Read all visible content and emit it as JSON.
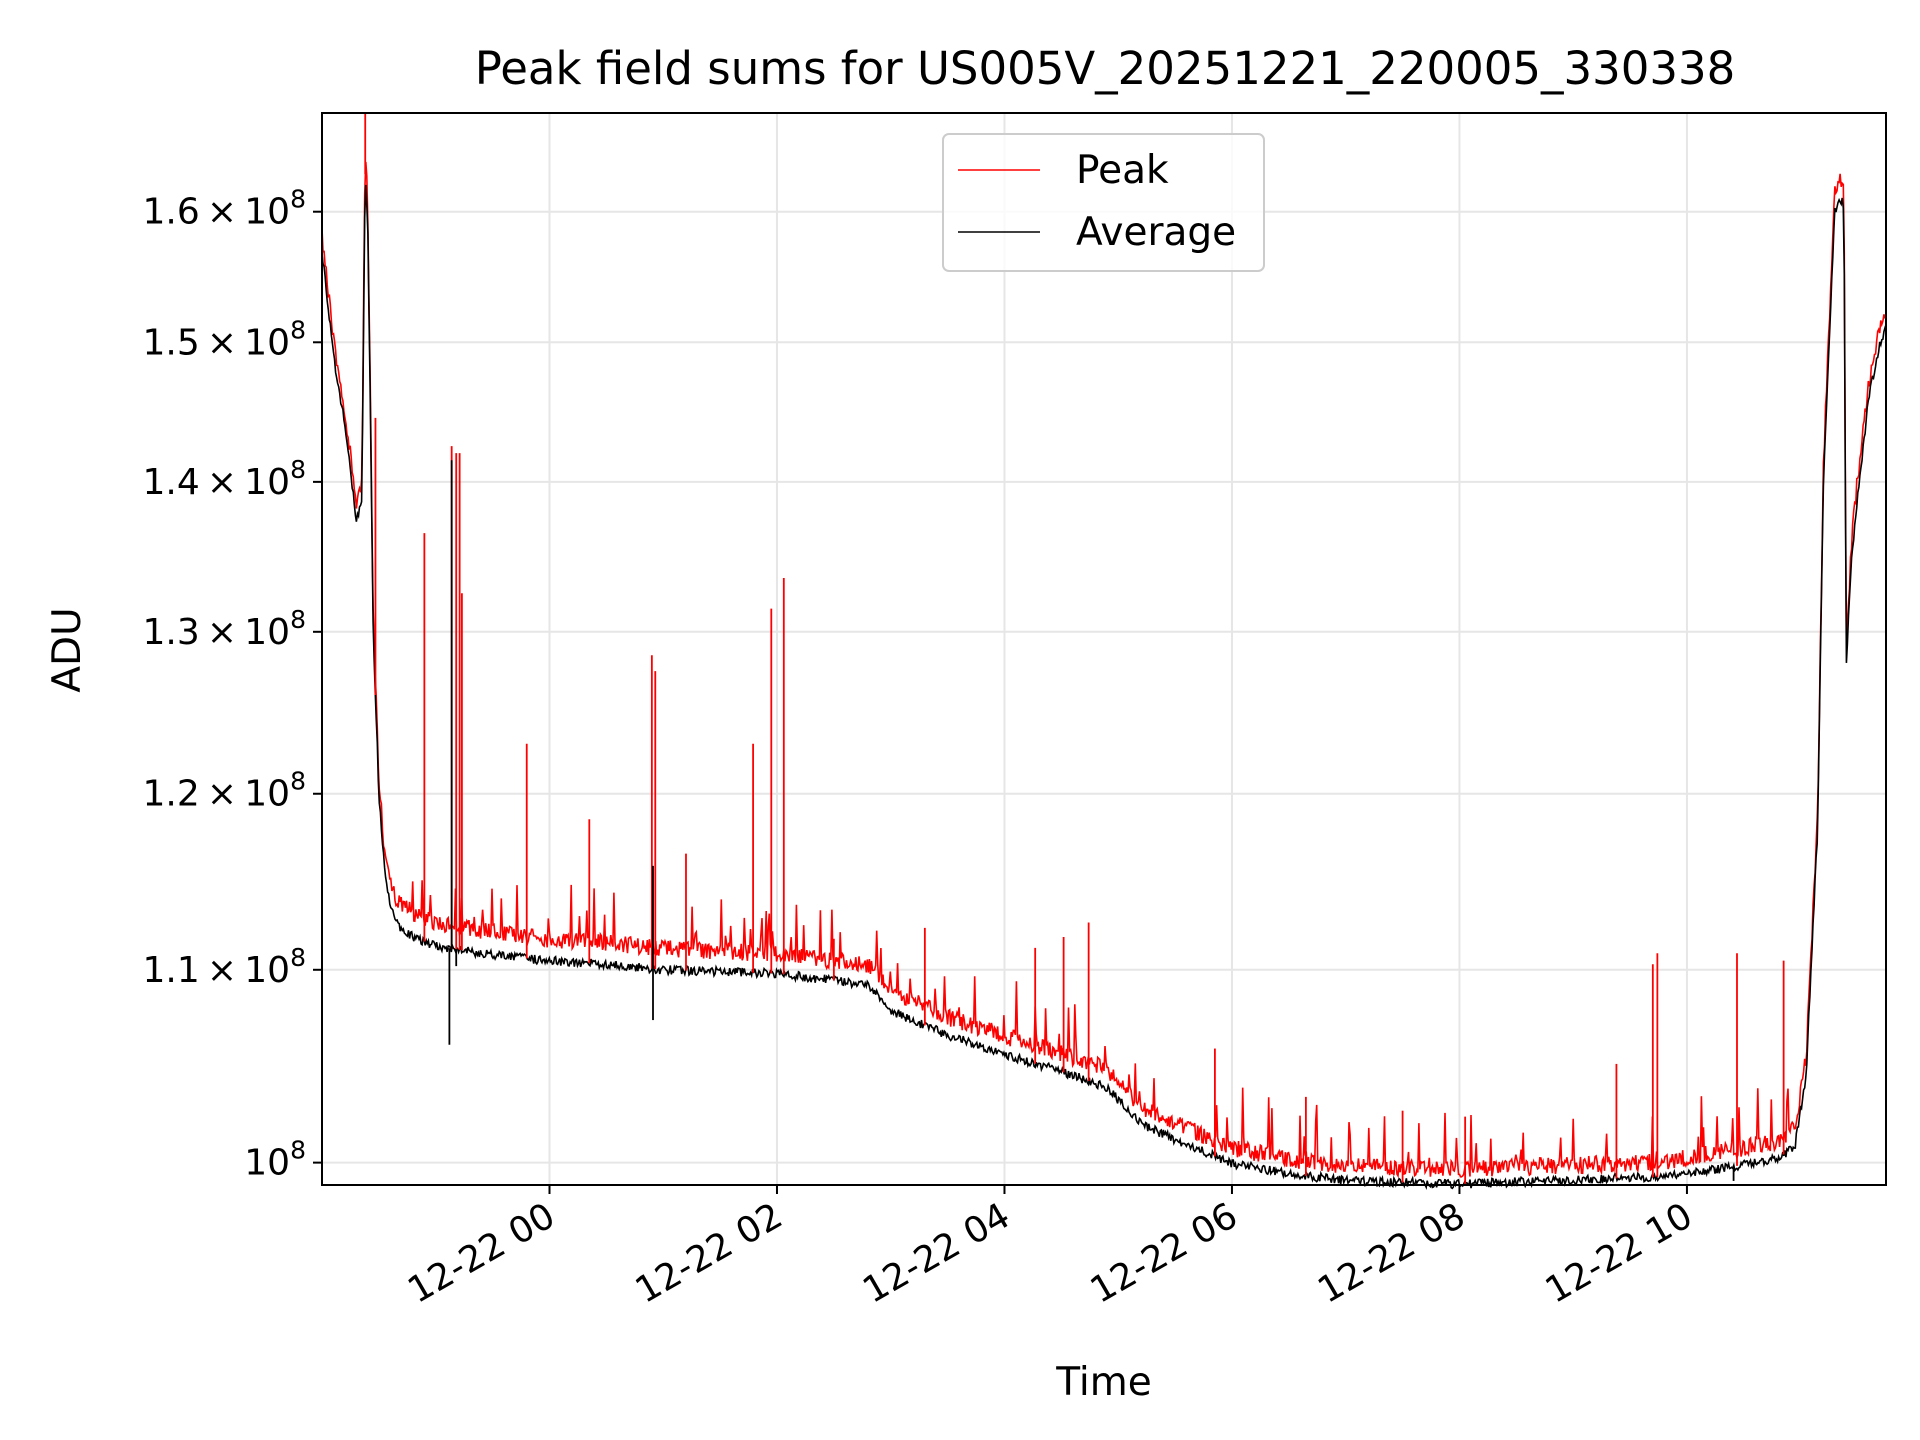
{
  "chart_data": {
    "type": "line",
    "title": "Peak field sums for US005V_20251221_220005_330338",
    "xlabel": "Time",
    "ylabel": "ADU",
    "x_unit": "hours since 2025-12-22 00:00",
    "xlim": [
      -2.0,
      11.75
    ],
    "ylim": [
      98900000,
      168000000
    ],
    "y_scale": "log",
    "grid": true,
    "legend_position": "upper-center",
    "x_ticks": [
      {
        "value": 0,
        "label": "12-22 00"
      },
      {
        "value": 2,
        "label": "12-22 02"
      },
      {
        "value": 4,
        "label": "12-22 04"
      },
      {
        "value": 6,
        "label": "12-22 06"
      },
      {
        "value": 8,
        "label": "12-22 08"
      },
      {
        "value": 10,
        "label": "12-22 10"
      }
    ],
    "y_ticks": [
      {
        "value": 100000000,
        "mant": "",
        "exp": "8"
      },
      {
        "value": 110000000,
        "mant": "1.1",
        "exp": "8"
      },
      {
        "value": 120000000,
        "mant": "1.2",
        "exp": "8"
      },
      {
        "value": 130000000,
        "mant": "1.3",
        "exp": "8"
      },
      {
        "value": 140000000,
        "mant": "1.4",
        "exp": "8"
      },
      {
        "value": 150000000,
        "mant": "1.5",
        "exp": "8"
      },
      {
        "value": 160000000,
        "mant": "1.6",
        "exp": "8"
      }
    ],
    "series": [
      {
        "name": "Peak",
        "color": "#ff0000"
      },
      {
        "name": "Average",
        "color": "#000000"
      }
    ],
    "baseline": {
      "x": [
        -2.0,
        -1.9,
        -1.8,
        -1.7,
        -1.65,
        -1.62,
        -1.6,
        -1.55,
        -1.5,
        -1.45,
        -1.4,
        -1.35,
        -1.3,
        -1.2,
        -1.0,
        -0.5,
        0.0,
        0.5,
        1.0,
        2.0,
        2.8,
        3.0,
        3.5,
        4.0,
        4.5,
        4.9,
        5.2,
        5.6,
        6.0,
        6.5,
        7.0,
        8.0,
        9.0,
        9.8,
        10.3,
        10.8,
        10.95,
        11.05,
        11.15,
        11.2,
        11.3,
        11.35,
        11.38,
        11.4,
        11.45,
        11.5,
        11.6,
        11.7,
        11.75
      ],
      "average": [
        157000000,
        149000000,
        144000000,
        137500000,
        138500000,
        163000000,
        160000000,
        130000000,
        120000000,
        115500000,
        113500000,
        112600000,
        112300000,
        111800000,
        111300000,
        110800000,
        110500000,
        110300000,
        110000000,
        109800000,
        109200000,
        107800000,
        106500000,
        105500000,
        104600000,
        103800000,
        101900000,
        100900000,
        99950000,
        99450000,
        99100000,
        98950000,
        99150000,
        99300000,
        99700000,
        100200000,
        100800000,
        104500000,
        118000000,
        140000000,
        160000000,
        161000000,
        160500000,
        128000000,
        135000000,
        139000000,
        146000000,
        150000000,
        151000000
      ],
      "peak_offset": [
        600000,
        500000,
        500000,
        600000,
        600000,
        800000,
        700000,
        500000,
        500000,
        600000,
        800000,
        900000,
        900000,
        900000,
        800000,
        800000,
        700000,
        700000,
        700000,
        600000,
        600000,
        600000,
        500000,
        500000,
        500000,
        500000,
        500000,
        400000,
        350000,
        300000,
        300000,
        300000,
        300000,
        350000,
        400000,
        450000,
        500000,
        500000,
        500000,
        600000,
        800000,
        800000,
        800000,
        600000,
        600000,
        600000,
        500000,
        500000,
        500000
      ]
    },
    "spikes": [
      {
        "series": "Peak",
        "x": -1.62,
        "value": 168000000
      },
      {
        "series": "Peak",
        "x": -1.53,
        "value": 144500000
      },
      {
        "series": "Peak",
        "x": -1.1,
        "value": 136500000
      },
      {
        "series": "Peak",
        "x": -0.86,
        "value": 142500000
      },
      {
        "series": "Peak",
        "x": -0.82,
        "value": 142000000
      },
      {
        "series": "Peak",
        "x": -0.79,
        "value": 142000000
      },
      {
        "series": "Peak",
        "x": -0.77,
        "value": 132500000
      },
      {
        "series": "Peak",
        "x": -0.2,
        "value": 123000000
      },
      {
        "series": "Peak",
        "x": 0.35,
        "value": 118500000
      },
      {
        "series": "Peak",
        "x": 0.9,
        "value": 128500000
      },
      {
        "series": "Peak",
        "x": 0.93,
        "value": 127500000
      },
      {
        "series": "Peak",
        "x": 1.2,
        "value": 116500000
      },
      {
        "series": "Peak",
        "x": 1.79,
        "value": 123000000
      },
      {
        "series": "Peak",
        "x": 1.95,
        "value": 131500000
      },
      {
        "series": "Peak",
        "x": 2.06,
        "value": 133500000
      },
      {
        "series": "Peak",
        "x": 2.5,
        "value": 111700000
      },
      {
        "series": "Peak",
        "x": 3.3,
        "value": 112300000
      },
      {
        "series": "Peak",
        "x": 4.27,
        "value": 111200000
      },
      {
        "series": "Peak",
        "x": 4.52,
        "value": 111800000
      },
      {
        "series": "Peak",
        "x": 4.74,
        "value": 112600000
      },
      {
        "series": "Peak",
        "x": 5.85,
        "value": 105800000
      },
      {
        "series": "Peak",
        "x": 6.65,
        "value": 103300000
      },
      {
        "series": "Peak",
        "x": 7.5,
        "value": 102600000
      },
      {
        "series": "Peak",
        "x": 8.05,
        "value": 102300000
      },
      {
        "series": "Peak",
        "x": 9.38,
        "value": 105000000
      },
      {
        "series": "Peak",
        "x": 9.7,
        "value": 110300000
      },
      {
        "series": "Peak",
        "x": 9.74,
        "value": 110900000
      },
      {
        "series": "Peak",
        "x": 10.44,
        "value": 110900000
      },
      {
        "series": "Peak",
        "x": 10.85,
        "value": 110500000
      },
      {
        "series": "Average",
        "x": -0.86,
        "value": 141500000
      },
      {
        "series": "Average",
        "x": -0.88,
        "value": 106000000
      },
      {
        "series": "Average",
        "x": -0.82,
        "value": 110200000
      },
      {
        "series": "Average",
        "x": 0.91,
        "value": 115800000
      },
      {
        "series": "Average",
        "x": 0.91,
        "value": 107300000
      },
      {
        "series": "Average",
        "x": 10.41,
        "value": 99100000
      }
    ]
  }
}
